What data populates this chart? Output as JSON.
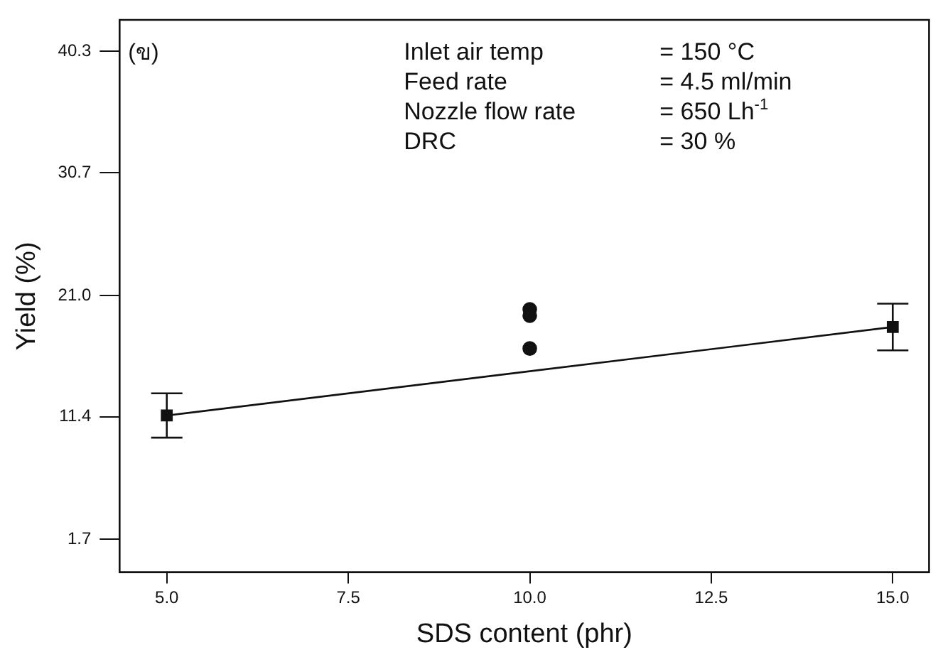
{
  "chart_data": {
    "type": "scatter",
    "xlabel": "SDS content (phr)",
    "ylabel": "Yield (%)",
    "xlim": [
      4.35,
      15.5
    ],
    "xticks": [
      {
        "value": 5,
        "label": "5.0"
      },
      {
        "value": 7.5,
        "label": "7.5"
      },
      {
        "value": 10,
        "label": "10.0"
      },
      12.5,
      {
        "value": 15,
        "label": "15.0"
      }
    ],
    "ylim": [
      -0.9,
      42.8
    ],
    "yticks": [
      1.7,
      11.4,
      {
        "value": 21,
        "label": "21.0"
      },
      30.7,
      40.3
    ],
    "grid": false,
    "legend": false,
    "annotations": [
      "(ข)",
      "Inlet air temp",
      "= 150 °C",
      "Feed rate",
      "= 4.5 ml/min",
      "Nozzle flow rate",
      "= 650 Lh$^{-1}$",
      "DRC",
      "= 30 %"
    ],
    "series": [
      {
        "type": "line",
        "x": [
          5,
          15
        ],
        "values": [
          11.5,
          18.5
        ],
        "color": "#111111",
        "marker": "none",
        "line_style": "solid"
      },
      {
        "x": [
          5,
          15
        ],
        "values": [
          11.5,
          18.5
        ],
        "errors": [
          1.75,
          1.85
        ],
        "color": "#111111",
        "marker": "square"
      },
      {
        "x": [
          10,
          10,
          10
        ],
        "values": [
          19.9,
          19.4,
          16.8
        ],
        "color": "#111111",
        "marker": "circle"
      }
    ]
  }
}
